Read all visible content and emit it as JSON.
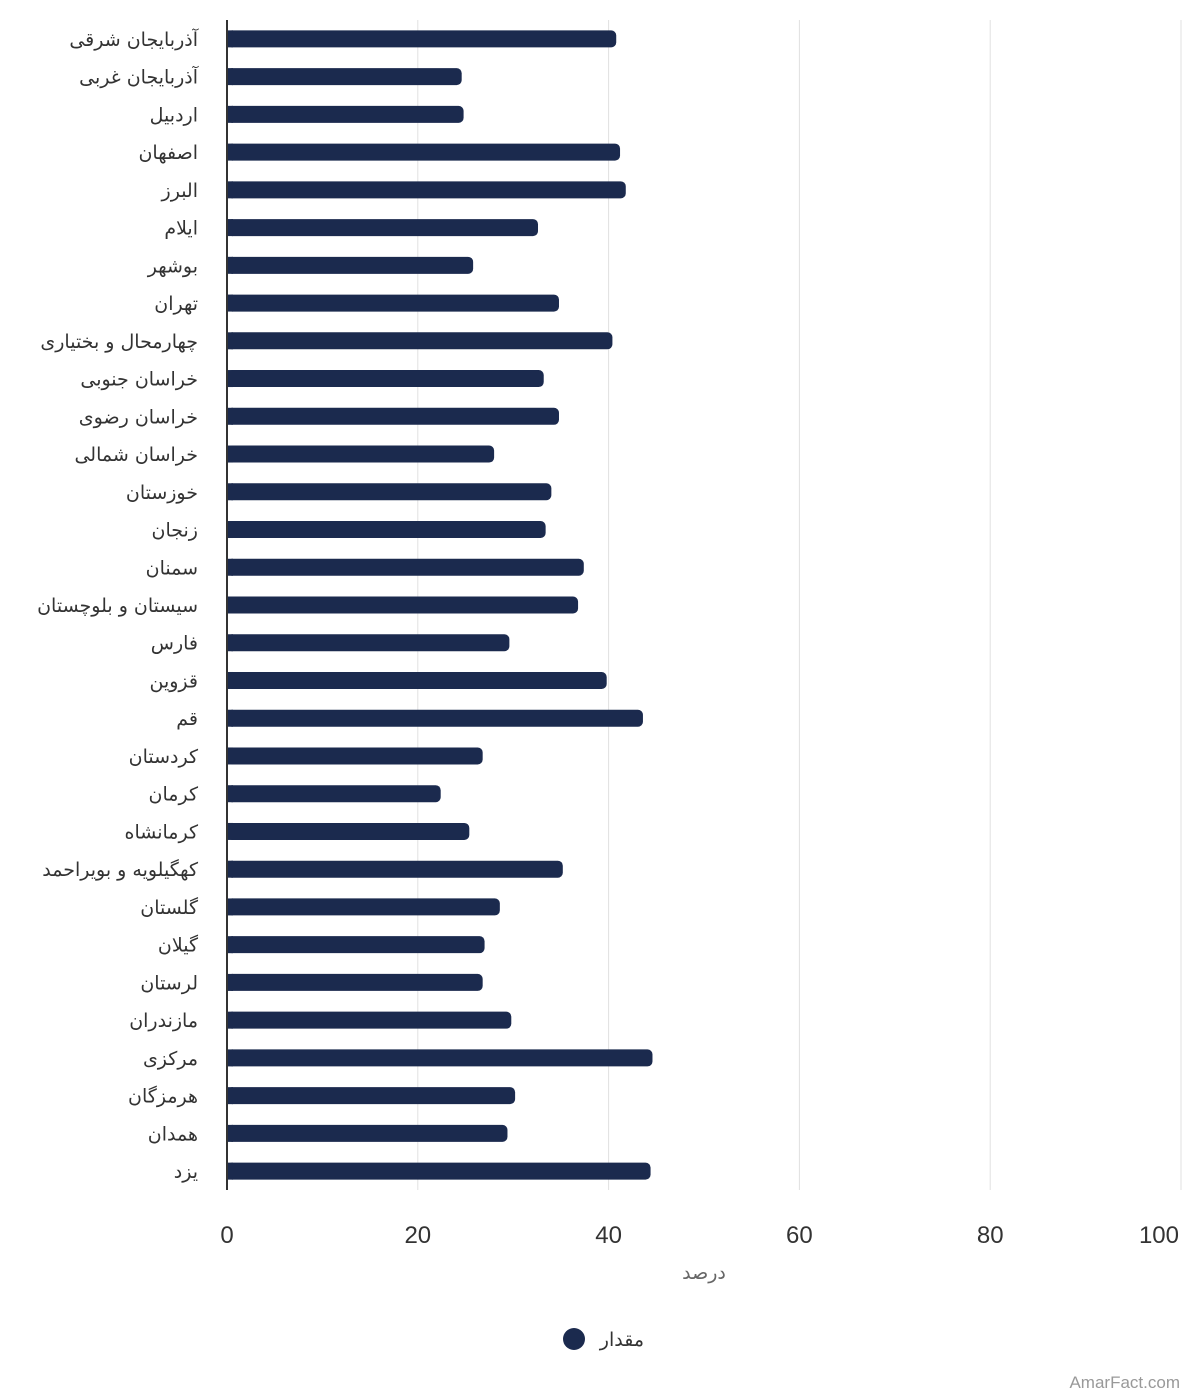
{
  "chart_data": {
    "type": "bar",
    "orientation": "horizontal",
    "categories": [
      "آذربایجان شرقی",
      "آذربایجان غربی",
      "اردبیل",
      "اصفهان",
      "البرز",
      "ایلام",
      "بوشهر",
      "تهران",
      "چهارمحال و بختیاری",
      "خراسان جنوبی",
      "خراسان رضوی",
      "خراسان شمالی",
      "خوزستان",
      "زنجان",
      "سمنان",
      "سیستان و بلوچستان",
      "فارس",
      "قزوین",
      "قم",
      "کردستان",
      "کرمان",
      "کرمانشاه",
      "کهگیلویه و بویراحمد",
      "گلستان",
      "گیلان",
      "لرستان",
      "مازندران",
      "مرکزی",
      "هرمزگان",
      "همدان",
      "یزد"
    ],
    "series": [
      {
        "name": "مقدار",
        "values": [
          40.8,
          24.6,
          24.8,
          41.2,
          41.8,
          32.6,
          25.8,
          34.8,
          40.4,
          33.2,
          34.8,
          28.0,
          34.0,
          33.4,
          37.4,
          36.8,
          29.6,
          39.8,
          43.6,
          26.8,
          22.4,
          25.4,
          35.2,
          28.6,
          27.0,
          26.8,
          29.8,
          44.6,
          30.2,
          29.4,
          44.4
        ]
      }
    ],
    "xlabel": "درصد",
    "ylabel": "",
    "xlim": [
      0,
      100
    ],
    "xticks": [
      "0",
      "20",
      "40",
      "60",
      "80",
      "100"
    ],
    "grid": true,
    "legend_position": "bottom-center",
    "colors": {
      "bar": "#1b2a4e",
      "grid": "#e0e0e0",
      "axis": "#333333"
    }
  },
  "credit": "AmarFact.com"
}
